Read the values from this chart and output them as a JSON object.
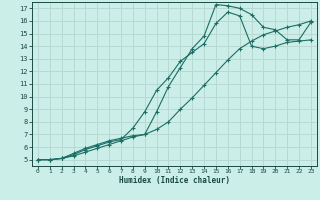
{
  "xlabel": "Humidex (Indice chaleur)",
  "bg_color": "#cceee8",
  "grid_color": "#b8d8d2",
  "line_color": "#1a6e64",
  "xlim": [
    -0.5,
    23.5
  ],
  "ylim": [
    4.5,
    17.5
  ],
  "xticks": [
    0,
    1,
    2,
    3,
    4,
    5,
    6,
    7,
    8,
    9,
    10,
    11,
    12,
    13,
    14,
    15,
    16,
    17,
    18,
    19,
    20,
    21,
    22,
    23
  ],
  "yticks": [
    5,
    6,
    7,
    8,
    9,
    10,
    11,
    12,
    13,
    14,
    15,
    16,
    17
  ],
  "line1_x": [
    0,
    1,
    2,
    3,
    4,
    5,
    6,
    7,
    8,
    9,
    10,
    11,
    12,
    13,
    14,
    15,
    16,
    17,
    18,
    19,
    20,
    21,
    22,
    23
  ],
  "line1_y": [
    5.0,
    5.0,
    5.1,
    5.5,
    5.9,
    6.2,
    6.5,
    6.7,
    6.9,
    7.0,
    8.8,
    10.8,
    12.3,
    13.8,
    14.8,
    17.3,
    17.2,
    17.0,
    16.5,
    15.5,
    15.3,
    14.5,
    14.5,
    15.9
  ],
  "line2_x": [
    0,
    1,
    2,
    3,
    4,
    5,
    6,
    7,
    8,
    9,
    10,
    11,
    12,
    13,
    14,
    15,
    16,
    17,
    18,
    19,
    20,
    21,
    22,
    23
  ],
  "line2_y": [
    5.0,
    5.0,
    5.1,
    5.4,
    5.8,
    6.1,
    6.4,
    6.6,
    7.5,
    8.8,
    10.5,
    11.5,
    12.8,
    13.5,
    14.2,
    15.8,
    16.7,
    16.4,
    14.0,
    13.8,
    14.0,
    14.3,
    14.4,
    14.5
  ],
  "line3_x": [
    0,
    1,
    2,
    3,
    4,
    5,
    6,
    7,
    8,
    9,
    10,
    11,
    12,
    13,
    14,
    15,
    16,
    17,
    18,
    19,
    20,
    21,
    22,
    23
  ],
  "line3_y": [
    5.0,
    5.0,
    5.1,
    5.3,
    5.6,
    5.9,
    6.2,
    6.5,
    6.8,
    7.0,
    7.4,
    8.0,
    9.0,
    9.9,
    10.9,
    11.9,
    12.9,
    13.8,
    14.4,
    14.9,
    15.2,
    15.5,
    15.7,
    16.0
  ]
}
